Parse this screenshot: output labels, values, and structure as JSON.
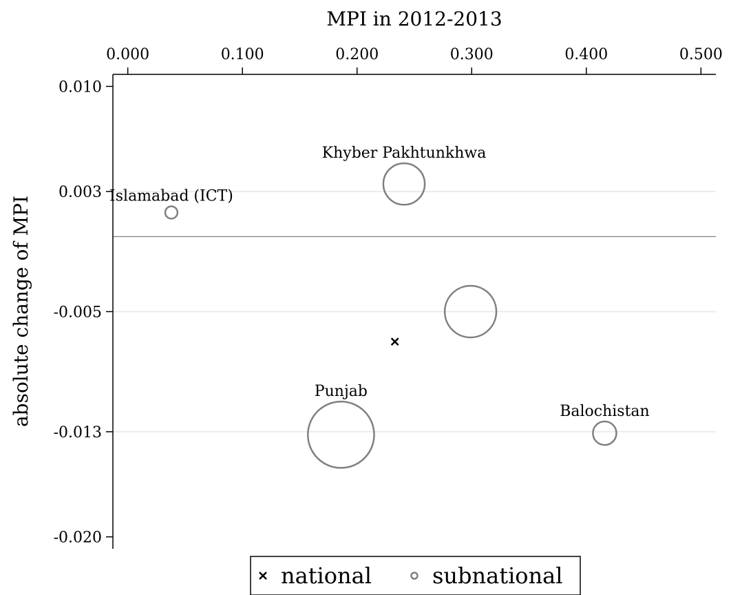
{
  "chart_data": {
    "type": "scatter",
    "title": "",
    "xlabel": "MPI in 2012-2013",
    "ylabel": "absolute change of MPI",
    "x_axis_position": "top",
    "xlim": [
      -0.013,
      0.513
    ],
    "ylim": [
      -0.0208,
      0.0108
    ],
    "x_ticks": [
      0.0,
      0.1,
      0.2,
      0.3,
      0.4,
      0.5
    ],
    "x_tick_labels": [
      "0.000",
      "0.100",
      "0.200",
      "0.300",
      "0.400",
      "0.500"
    ],
    "y_ticks": [
      0.01,
      0.003,
      -0.005,
      -0.013,
      -0.02
    ],
    "y_tick_labels": [
      "0.010",
      "0.003",
      "-0.005",
      "-0.013",
      "-0.020"
    ],
    "y_gridlines": [
      0.003,
      -0.005,
      -0.013
    ],
    "reference_line_y": 0.0,
    "series": [
      {
        "name": "national",
        "marker": "x",
        "points": [
          {
            "label": "",
            "x": 0.233,
            "y": -0.007,
            "size": 0
          }
        ]
      },
      {
        "name": "subnational",
        "marker": "circle",
        "points": [
          {
            "label": "Islamabad (ICT)",
            "x": 0.038,
            "y": 0.0016,
            "size": 0.1
          },
          {
            "label": "Khyber Pakhtunkhwa",
            "x": 0.241,
            "y": 0.0035,
            "size": 2.8
          },
          {
            "label": "",
            "x": 0.299,
            "y": -0.005,
            "size": 4.6
          },
          {
            "label": "Punjab",
            "x": 0.186,
            "y": -0.0132,
            "size": 8.0
          },
          {
            "label": "Balochistan",
            "x": 0.416,
            "y": -0.0131,
            "size": 0.7
          }
        ]
      }
    ],
    "legend": {
      "position": "bottom-center",
      "entries": [
        {
          "label": "national",
          "marker": "x"
        },
        {
          "label": "subnational",
          "marker": "circle"
        }
      ]
    },
    "colors": {
      "subnational": "#808080",
      "national": "#000000",
      "gridline": "#ebebeb",
      "reference_line": "#808080"
    }
  }
}
